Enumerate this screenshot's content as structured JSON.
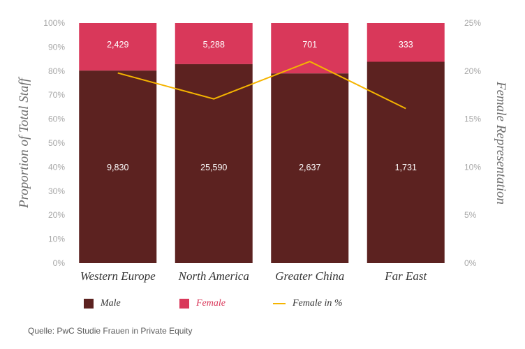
{
  "chart_data": {
    "type": "bar",
    "stacked": true,
    "normalized": true,
    "categories": [
      "Western Europe",
      "North America",
      "Greater China",
      "Far East"
    ],
    "series": [
      {
        "name": "Male",
        "values": [
          9830,
          25590,
          2637,
          1731
        ],
        "labels": [
          "9,830",
          "25,590",
          "2,637",
          "1,731"
        ],
        "color": "#5c2220"
      },
      {
        "name": "Female",
        "values": [
          2429,
          5288,
          701,
          333
        ],
        "labels": [
          "2,429",
          "5,288",
          "701",
          "333"
        ],
        "color": "#d9385a"
      },
      {
        "name": "Female in %",
        "type": "line",
        "axis": "right",
        "values": [
          19.8,
          17.1,
          21.0,
          16.1
        ],
        "color": "#f5b400"
      }
    ],
    "yLeft": {
      "label": "Proportion of Total Staff",
      "ticks": [
        "0%",
        "10%",
        "20%",
        "30%",
        "40%",
        "50%",
        "60%",
        "70%",
        "80%",
        "90%",
        "100%"
      ],
      "ylim": [
        0,
        100
      ]
    },
    "yRight": {
      "label": "Female Representation",
      "ticks": [
        "0%",
        "5%",
        "10%",
        "15%",
        "20%",
        "25%"
      ],
      "ylim": [
        0,
        25
      ]
    },
    "legend_position": "bottom",
    "grid": false
  },
  "legend": {
    "male": "Male",
    "female": "Female",
    "line": "Female in %"
  },
  "source": "Quelle: PwC Studie Frauen in Private Equity"
}
